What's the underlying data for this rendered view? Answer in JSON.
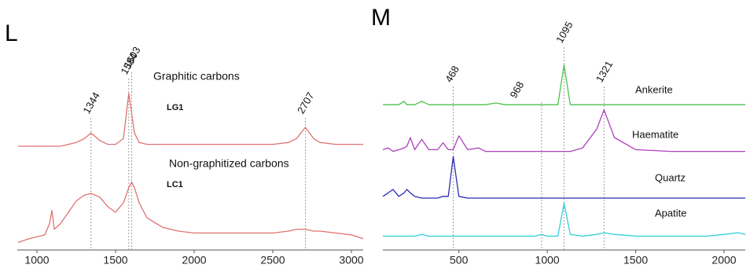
{
  "chart_data": [
    {
      "type": "line",
      "label": "L",
      "x": [
        880,
        950,
        1000,
        1050,
        1080,
        1095,
        1110,
        1150,
        1200,
        1250,
        1300,
        1344,
        1400,
        1450,
        1500,
        1550,
        1584,
        1603,
        1620,
        1650,
        1700,
        1800,
        1900,
        2000,
        2100,
        2200,
        2300,
        2400,
        2500,
        2600,
        2650,
        2707,
        2760,
        2800,
        2900,
        3000,
        3075
      ],
      "series": [
        {
          "name": "LG1",
          "color": "#e07272",
          "values": [
            55,
            55,
            55,
            55,
            55,
            55,
            55,
            55,
            56,
            57,
            59,
            62,
            58,
            56,
            56,
            59,
            83,
            72,
            62,
            57,
            56,
            56,
            56,
            56,
            56,
            56,
            56,
            56,
            56,
            57,
            59,
            65,
            59,
            57,
            56,
            56,
            56
          ]
        },
        {
          "name": "LC1",
          "color": "#e07272",
          "values": [
            4,
            6,
            7,
            8,
            14,
            21,
            11,
            14,
            20,
            26,
            29,
            30,
            28,
            23,
            20,
            25,
            33,
            36,
            33,
            25,
            17,
            12,
            10,
            9,
            9,
            9,
            9,
            9,
            9,
            10,
            11,
            11,
            10,
            10,
            9,
            8,
            6
          ]
        }
      ],
      "annotations": [
        "Graphitic carbons",
        "Non-graphitized carbons"
      ],
      "peaks": [
        1344,
        1584,
        1603,
        2707
      ],
      "xlim": [
        875,
        3075
      ],
      "xticks": [
        1000,
        1500,
        2000,
        2500,
        3000
      ],
      "ylim": [
        0,
        100
      ]
    },
    {
      "type": "line",
      "label": "M",
      "x": [
        70,
        100,
        128,
        160,
        190,
        206,
        225,
        250,
        290,
        330,
        380,
        410,
        440,
        468,
        500,
        550,
        612,
        650,
        710,
        760,
        850,
        930,
        968,
        1000,
        1060,
        1095,
        1130,
        1200,
        1280,
        1321,
        1380,
        1500,
        1700,
        1900,
        2000,
        2080,
        2120
      ],
      "series": [
        {
          "name": "Ankerite",
          "color": "#4cc24c",
          "values": [
            84,
            84,
            84,
            84,
            86,
            84,
            84,
            84,
            86,
            84,
            84,
            84,
            84,
            84,
            84,
            84,
            84,
            84,
            85,
            84,
            84,
            84,
            84,
            84,
            84,
            107,
            84,
            84,
            84,
            84,
            84,
            84,
            84,
            84,
            84,
            84,
            84
          ]
        },
        {
          "name": "Haematite",
          "color": "#b040c0",
          "values": [
            58,
            59,
            57,
            58,
            59,
            60,
            65,
            58,
            64,
            58,
            58,
            62,
            58,
            58,
            66,
            58,
            59,
            57,
            57,
            57,
            57,
            57,
            57,
            57,
            57,
            57,
            57,
            59,
            70,
            81,
            65,
            58,
            57,
            57,
            57,
            57,
            57
          ]
        },
        {
          "name": "Quartz",
          "color": "#2a2ab0",
          "values": [
            31,
            33,
            35,
            31,
            33,
            35,
            33,
            31,
            30,
            30,
            30,
            31,
            31,
            54,
            31,
            30,
            30,
            30,
            30,
            30,
            30,
            30,
            30,
            30,
            30,
            30,
            30,
            30,
            30,
            30,
            30,
            30,
            30,
            30,
            30,
            30,
            30
          ]
        },
        {
          "name": "Apatite",
          "color": "#30d0d8",
          "values": [
            8,
            8,
            8,
            8,
            8,
            8,
            8,
            8,
            9,
            8,
            8,
            8,
            8,
            8,
            8,
            8,
            8,
            8,
            8,
            8,
            8,
            8,
            9,
            8,
            8,
            27,
            9,
            8,
            9,
            10,
            9,
            8,
            8,
            8,
            9,
            10,
            9
          ]
        }
      ],
      "peaks": [
        468,
        968,
        1095,
        1321
      ],
      "xlim": [
        70,
        2120
      ],
      "xticks": [
        500,
        1000,
        1500,
        2000
      ],
      "ylim": [
        0,
        110
      ]
    }
  ]
}
